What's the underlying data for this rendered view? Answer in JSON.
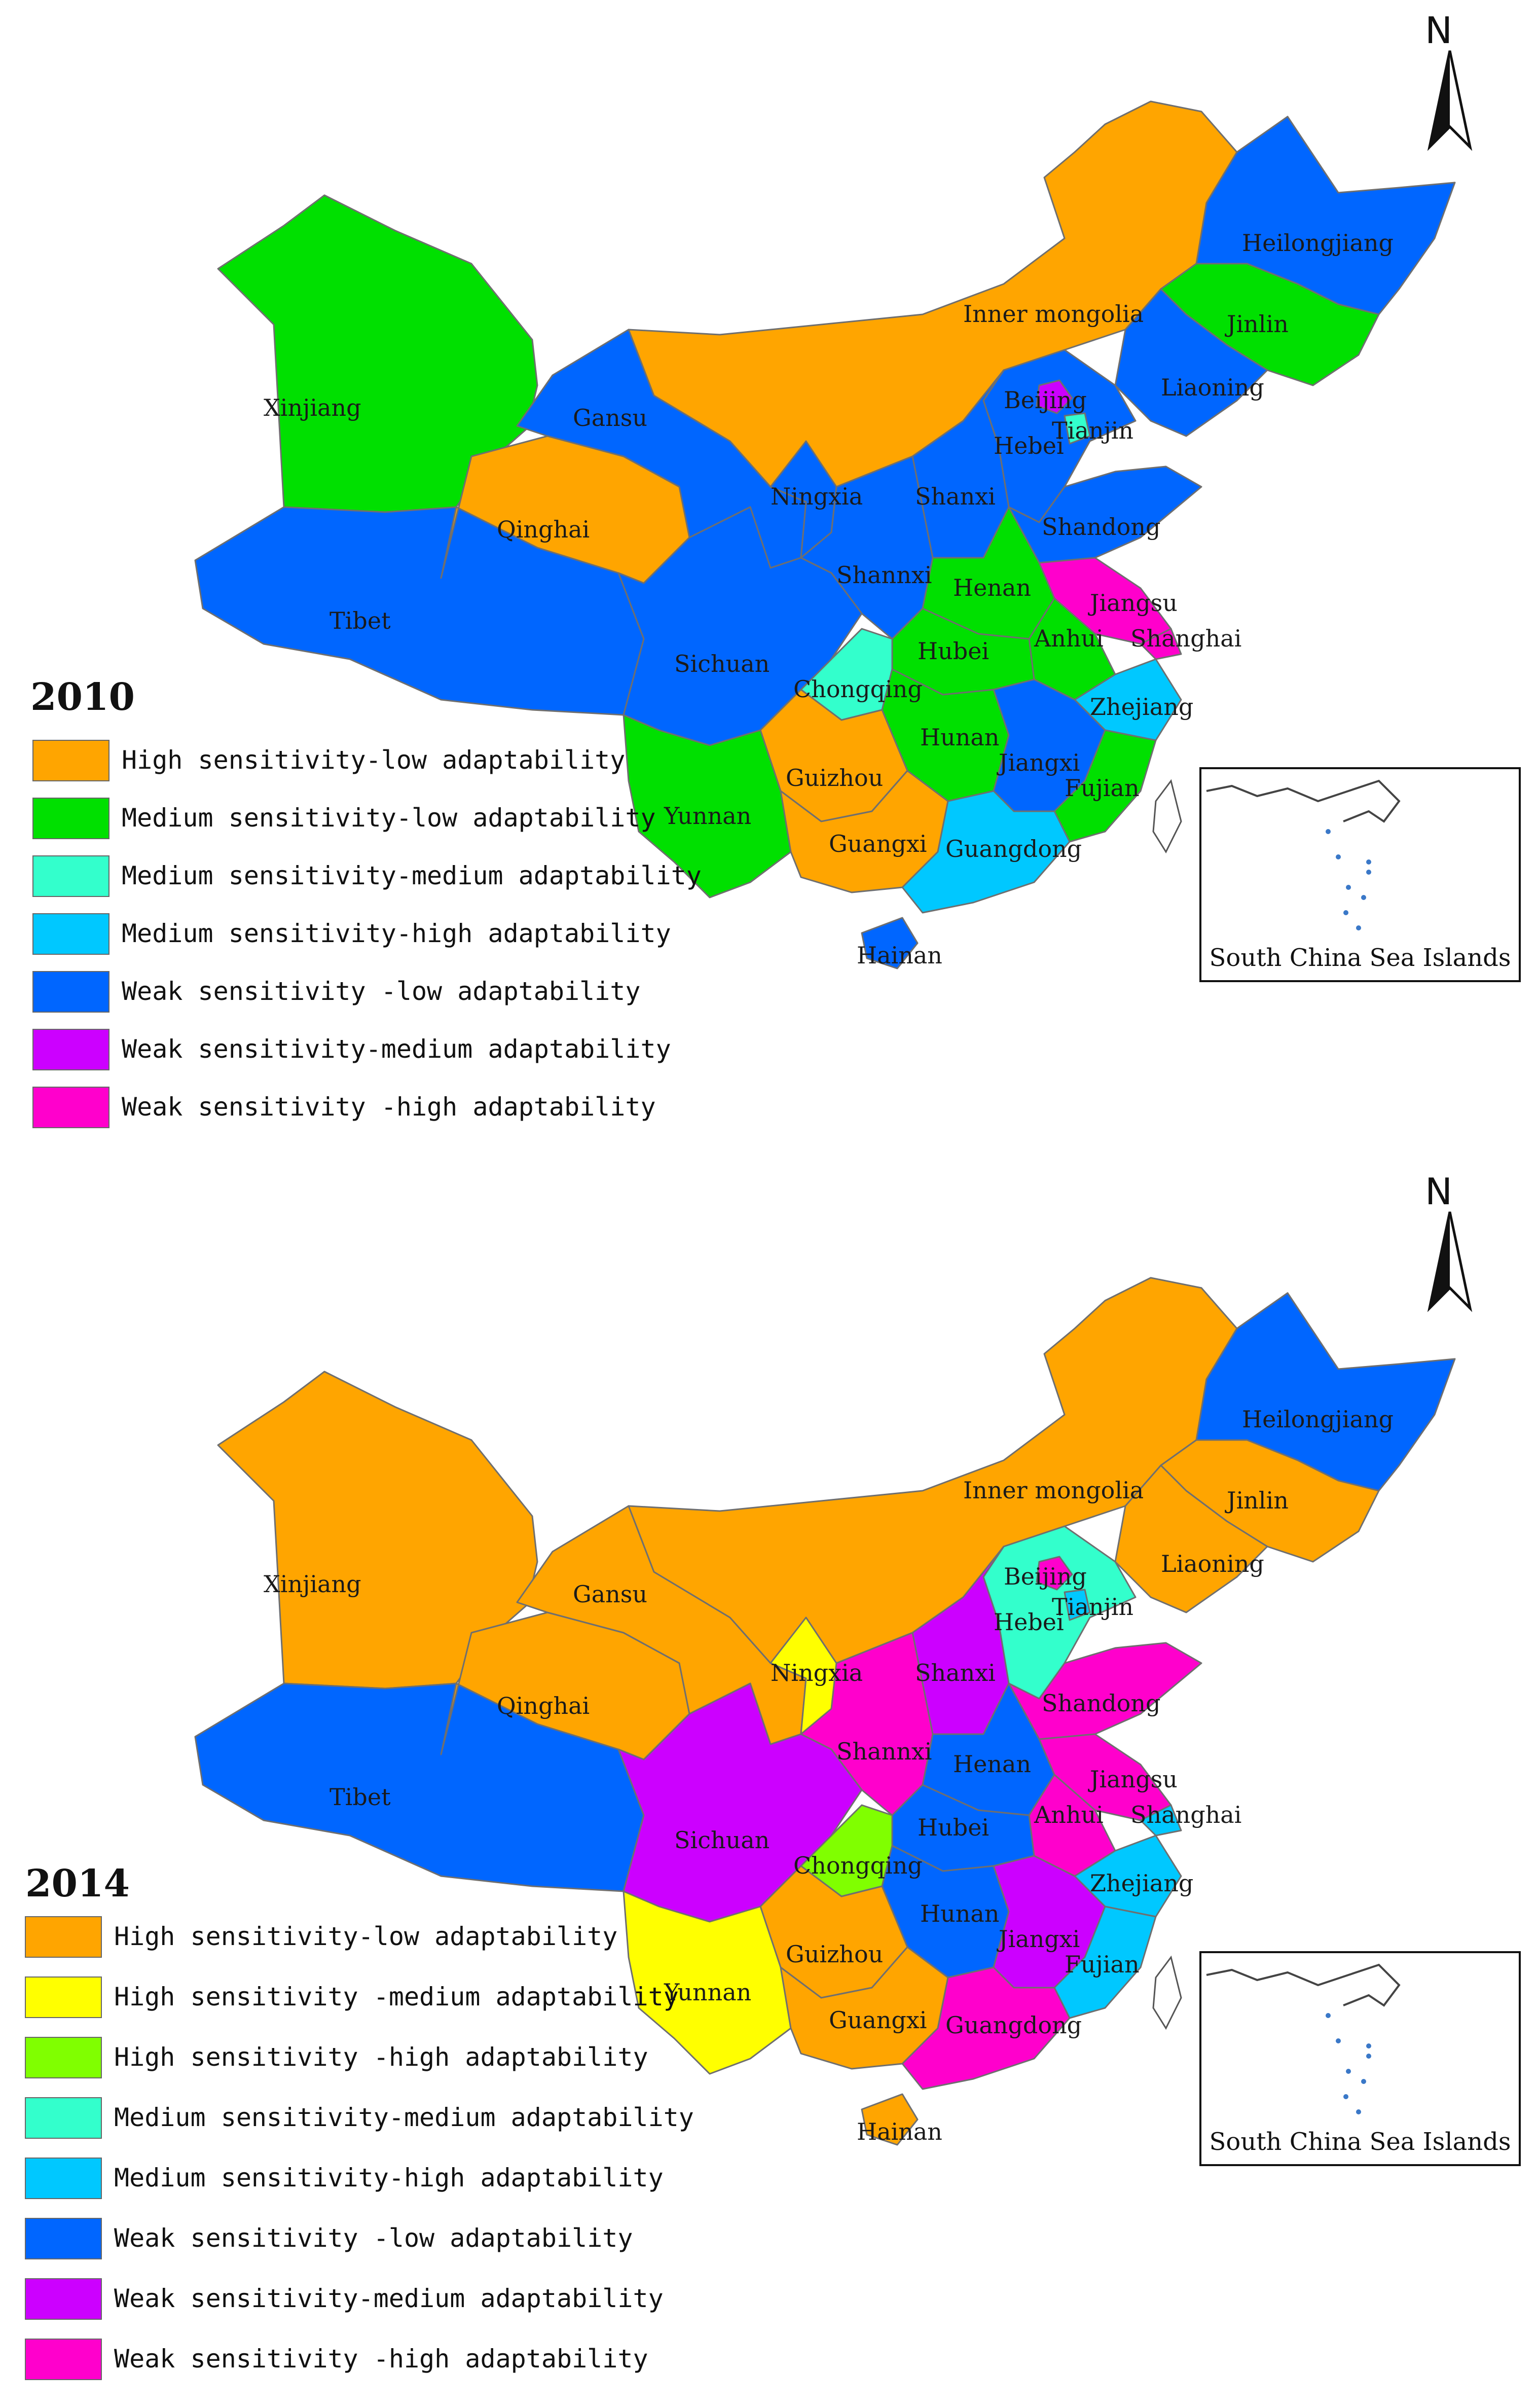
{
  "colors": {
    "high_low": "#FFA500",
    "high_med": "#FFFF00",
    "high_high": "#80FF00",
    "med_low": "#00E000",
    "med_med": "#33FFCC",
    "med_high": "#00C8FF",
    "weak_low": "#0066FF",
    "weak_med": "#CC00FF",
    "weak_high": "#FF00CC"
  },
  "maps": [
    {
      "year": "2010",
      "inset_label": "South China Sea Islands",
      "north_label": "N",
      "legend": [
        {
          "label": "High sensitivity-low adaptability",
          "color_key": "high_low"
        },
        {
          "label": "Medium sensitivity-low adaptability",
          "color_key": "med_low"
        },
        {
          "label": "Medium sensitivity-medium adaptability",
          "color_key": "med_med"
        },
        {
          "label": "Medium sensitivity-high adaptability",
          "color_key": "med_high"
        },
        {
          "label": "Weak sensitivity -low adaptability",
          "color_key": "weak_low"
        },
        {
          "label": "Weak sensitivity-medium adaptability",
          "color_key": "weak_med"
        },
        {
          "label": "Weak sensitivity -high adaptability",
          "color_key": "weak_high"
        }
      ],
      "provinces": {
        "Xinjiang": "med_low",
        "Tibet": "weak_low",
        "Qinghai": "high_low",
        "Gansu": "weak_low",
        "Inner mongolia": "high_low",
        "Heilongjiang": "weak_low",
        "Jinlin": "med_low",
        "Liaoning": "weak_low",
        "Beijing": "weak_med",
        "Tianjin": "med_med",
        "Hebei": "weak_low",
        "Shanxi": "weak_low",
        "Ningxia": "weak_low",
        "Shannxi": "weak_low",
        "Shandong": "weak_low",
        "Henan": "med_low",
        "Jiangsu": "weak_high",
        "Shanghai": "weak_high",
        "Anhui": "med_low",
        "Hubei": "med_low",
        "Sichuan": "weak_low",
        "Chongqing": "med_med",
        "Zhejiang": "med_high",
        "Hunan": "med_low",
        "Jiangxi": "weak_low",
        "Fujian": "med_low",
        "Guizhou": "high_low",
        "Yunnan": "med_low",
        "Guangxi": "high_low",
        "Guangdong": "med_high",
        "Hainan": "weak_low"
      }
    },
    {
      "year": "2014",
      "inset_label": "South China Sea Islands",
      "north_label": "N",
      "legend": [
        {
          "label": "High sensitivity-low adaptability",
          "color_key": "high_low"
        },
        {
          "label": "High sensitivity -medium adaptability",
          "color_key": "high_med"
        },
        {
          "label": "High sensitivity -high adaptability",
          "color_key": "high_high"
        },
        {
          "label": "Medium sensitivity-medium adaptability",
          "color_key": "med_med"
        },
        {
          "label": "Medium sensitivity-high adaptability",
          "color_key": "med_high"
        },
        {
          "label": "Weak sensitivity -low adaptability",
          "color_key": "weak_low"
        },
        {
          "label": "Weak sensitivity-medium adaptability",
          "color_key": "weak_med"
        },
        {
          "label": "Weak sensitivity -high adaptability",
          "color_key": "weak_high"
        }
      ],
      "provinces": {
        "Xinjiang": "high_low",
        "Tibet": "weak_low",
        "Qinghai": "high_low",
        "Gansu": "high_low",
        "Inner mongolia": "high_low",
        "Heilongjiang": "weak_low",
        "Jinlin": "high_low",
        "Liaoning": "high_low",
        "Beijing": "weak_high",
        "Tianjin": "med_high",
        "Hebei": "med_med",
        "Shanxi": "weak_med",
        "Ningxia": "high_med",
        "Shannxi": "weak_high",
        "Shandong": "weak_high",
        "Henan": "weak_low",
        "Jiangsu": "weak_high",
        "Shanghai": "med_high",
        "Anhui": "weak_high",
        "Hubei": "weak_low",
        "Sichuan": "weak_med",
        "Chongqing": "high_high",
        "Zhejiang": "med_high",
        "Hunan": "weak_low",
        "Jiangxi": "weak_med",
        "Fujian": "med_high",
        "Guizhou": "high_low",
        "Yunnan": "high_med",
        "Guangxi": "high_low",
        "Guangdong": "weak_high",
        "Hainan": "high_low"
      }
    }
  ]
}
